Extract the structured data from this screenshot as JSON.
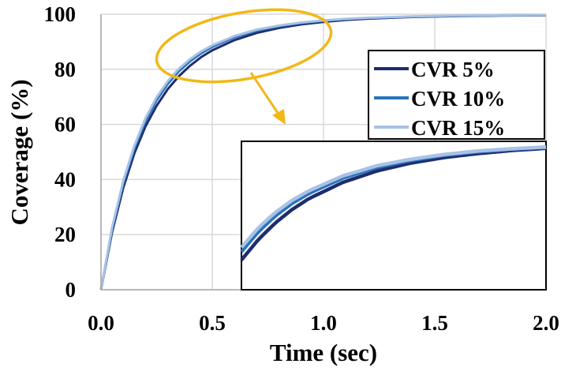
{
  "chart_data": {
    "type": "line",
    "xlabel": "Time (sec)",
    "ylabel": "Coverage (%)",
    "xlim": [
      0,
      2.0
    ],
    "ylim": [
      0,
      100
    ],
    "x_ticks": [
      "0.0",
      "0.5",
      "1.0",
      "1.5",
      "2.0"
    ],
    "y_ticks": [
      "0",
      "20",
      "40",
      "60",
      "80",
      "100"
    ],
    "grid": true,
    "legend_position": "right",
    "x": [
      0,
      0.05,
      0.1,
      0.15,
      0.2,
      0.25,
      0.3,
      0.35,
      0.4,
      0.45,
      0.5,
      0.6,
      0.7,
      0.8,
      0.9,
      1.0,
      1.1,
      1.2,
      1.4,
      1.6,
      1.8,
      2.0
    ],
    "series": [
      {
        "name": "CVR 5%",
        "color": "#1f2d6e",
        "values": [
          0,
          21.0,
          37.0,
          49.5,
          59.3,
          66.8,
          72.8,
          77.5,
          81.3,
          84.4,
          86.9,
          90.6,
          93.2,
          95.0,
          96.3,
          97.2,
          97.9,
          98.4,
          99.0,
          99.3,
          99.5,
          99.6
        ]
      },
      {
        "name": "CVR 10%",
        "color": "#2a73bc",
        "values": [
          0,
          22.0,
          38.6,
          51.3,
          61.2,
          68.8,
          74.7,
          79.3,
          82.9,
          85.8,
          88.1,
          91.6,
          94.0,
          95.6,
          96.8,
          97.6,
          98.2,
          98.6,
          99.1,
          99.4,
          99.6,
          99.7
        ]
      },
      {
        "name": "CVR 15%",
        "color": "#a9c2e5",
        "values": [
          0,
          22.7,
          39.5,
          52.3,
          62.3,
          69.9,
          75.7,
          80.2,
          83.7,
          86.5,
          88.7,
          92.1,
          94.4,
          95.9,
          97.0,
          97.8,
          98.3,
          98.7,
          99.2,
          99.5,
          99.6,
          99.7
        ]
      }
    ],
    "annotations": {
      "highlight_ellipse": "around x 0.25–1.05, y 80–100",
      "inset": "zoom of highlighted region"
    },
    "colors": {
      "ellipse": "#f2b818",
      "grid": "#d9d9d9",
      "axis": "#a6a6a6"
    }
  }
}
